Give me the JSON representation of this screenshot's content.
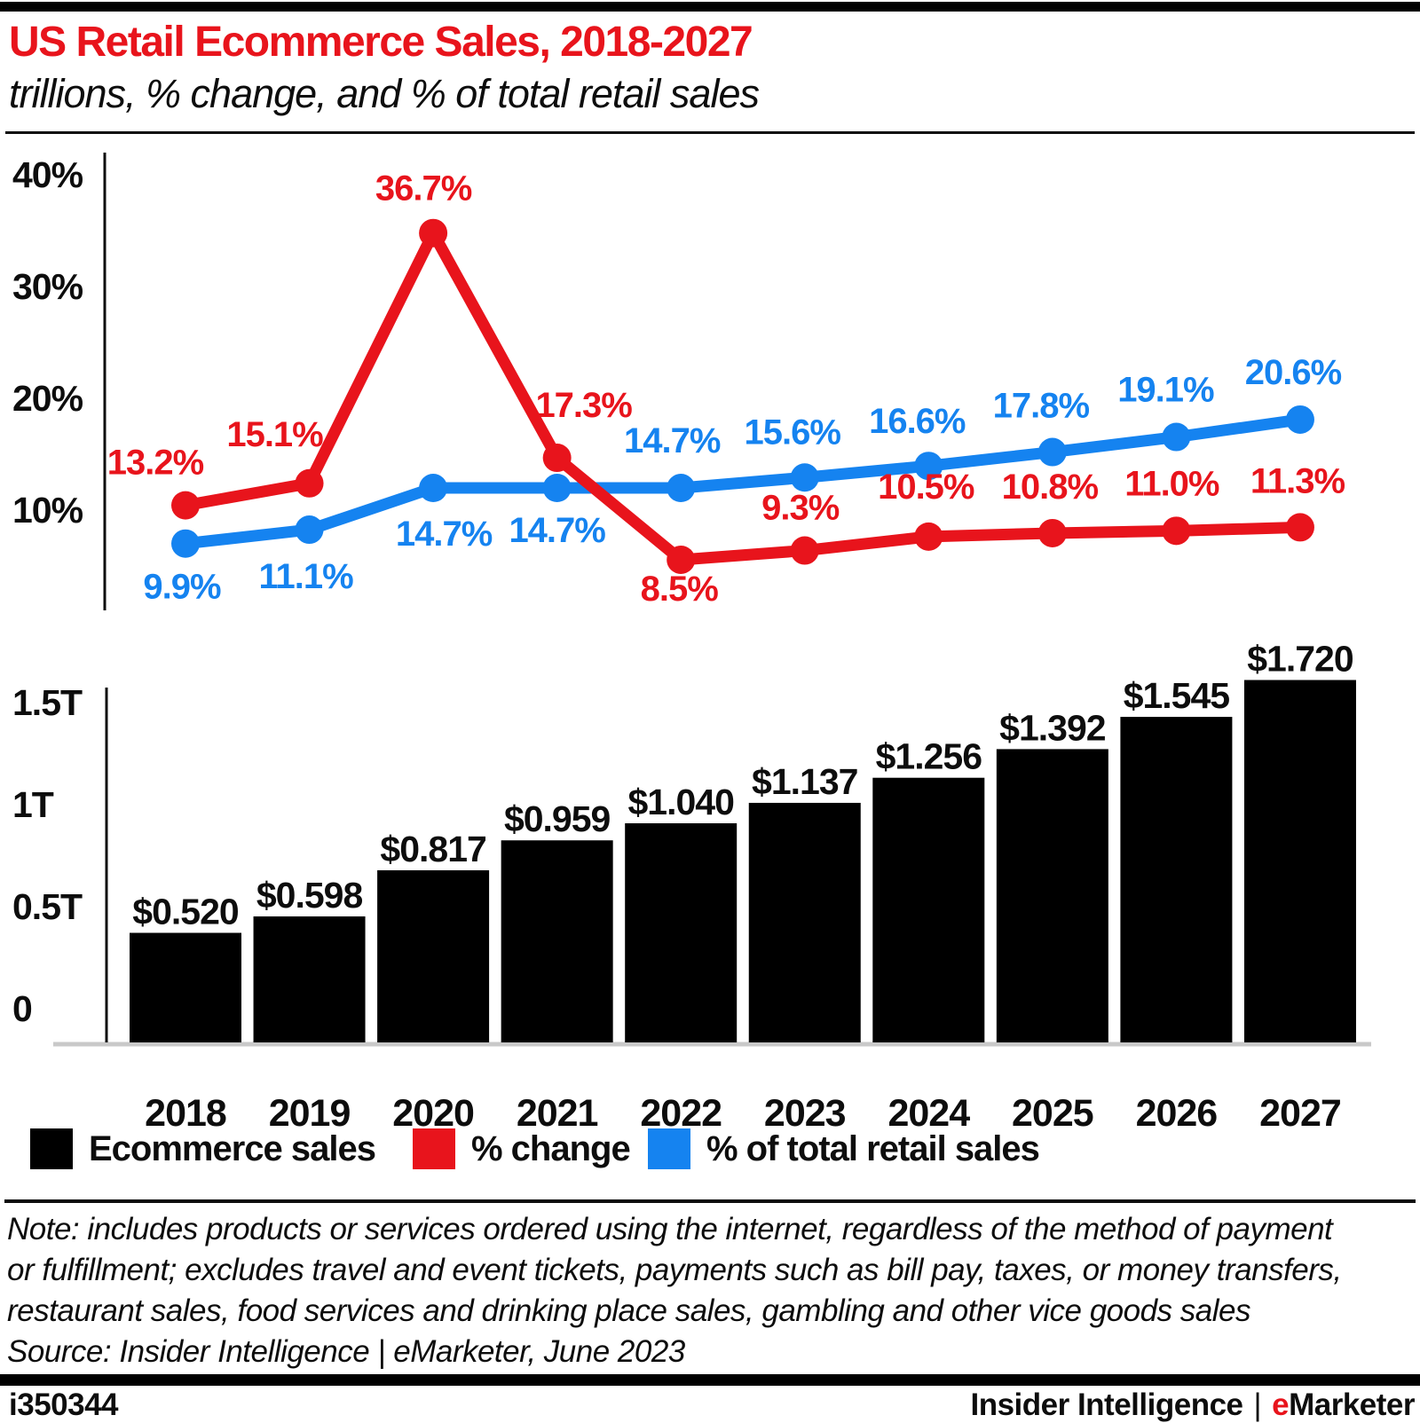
{
  "header": {
    "title": "US Retail Ecommerce Sales, 2018-2027",
    "subtitle": "trillions, % change, and % of total retail sales"
  },
  "colors": {
    "red": "#e8141c",
    "blue": "#1583f0",
    "black": "#000000",
    "text": "#0d0d0d",
    "baseline_gray": "#c9c9c9"
  },
  "chart_data": [
    {
      "type": "line",
      "categories": [
        "2018",
        "2019",
        "2020",
        "2021",
        "2022",
        "2023",
        "2024",
        "2025",
        "2026",
        "2027"
      ],
      "yticks": {
        "labels": [
          "40%",
          "30%",
          "20%",
          "10%"
        ],
        "values": [
          40,
          30,
          20,
          10
        ]
      },
      "ylim": [
        0,
        42
      ],
      "grid": false,
      "legend_position": "bottom",
      "series": [
        {
          "name": "% change",
          "color": "#e8141c",
          "values": [
            13.2,
            15.1,
            36.7,
            17.3,
            8.5,
            9.3,
            10.5,
            10.8,
            11.0,
            11.3
          ],
          "labels": [
            "13.2%",
            "15.1%",
            "36.7%",
            "17.3%",
            "8.5%",
            "9.3%",
            "10.5%",
            "10.8%",
            "11.0%",
            "11.3%"
          ],
          "label_offsets": [
            [
              -34,
              -48
            ],
            [
              -39,
              -55
            ],
            [
              -11,
              -50
            ],
            [
              30,
              -59
            ],
            [
              -2,
              33
            ],
            [
              -5,
              -48
            ],
            [
              -3,
              -56
            ],
            [
              -3,
              -52
            ],
            [
              -5,
              -53
            ],
            [
              -3,
              -52
            ]
          ]
        },
        {
          "name": "% of total retail sales",
          "color": "#1583f0",
          "values": [
            9.9,
            11.1,
            14.7,
            14.7,
            14.7,
            15.6,
            16.6,
            17.8,
            19.1,
            20.6
          ],
          "labels": [
            "9.9%",
            "11.1%",
            "14.7%",
            "14.7%",
            "14.7%",
            "15.6%",
            "16.6%",
            "17.8%",
            "19.1%",
            "20.6%"
          ],
          "label_offsets": [
            [
              -4,
              49
            ],
            [
              -4,
              53
            ],
            [
              12,
              52
            ],
            [
              0,
              48
            ],
            [
              -10,
              -53
            ],
            [
              -14,
              -51
            ],
            [
              -13,
              -50
            ],
            [
              -13,
              -52
            ],
            [
              -12,
              -53
            ],
            [
              -8,
              -53
            ]
          ]
        }
      ]
    },
    {
      "type": "bar",
      "categories": [
        "2018",
        "2019",
        "2020",
        "2021",
        "2022",
        "2023",
        "2024",
        "2025",
        "2026",
        "2027"
      ],
      "values": [
        0.52,
        0.598,
        0.817,
        0.959,
        1.04,
        1.137,
        1.256,
        1.392,
        1.545,
        1.72
      ],
      "bar_labels": [
        "$0.520",
        "$0.598",
        "$0.817",
        "$0.959",
        "$1.040",
        "$1.137",
        "$1.256",
        "$1.392",
        "$1.545",
        "$1.720"
      ],
      "yticks": {
        "labels": [
          "1.5T",
          "1T",
          "0.5T",
          "0"
        ],
        "values": [
          1.5,
          1.0,
          0.5,
          0
        ]
      },
      "ylim": [
        0,
        1.75
      ],
      "grid": false,
      "color": "#000000"
    }
  ],
  "legend": {
    "items": [
      {
        "label": "Ecommerce sales",
        "color": "#000000"
      },
      {
        "label": "% change",
        "color": "#e8141c"
      },
      {
        "label": "% of total retail sales",
        "color": "#1583f0"
      }
    ]
  },
  "note": {
    "lines": [
      "Note: includes products or services ordered using the internet, regardless of the method of payment",
      "or fulfillment; excludes travel and event tickets, payments such as bill pay, taxes, or money transfers,",
      "restaurant sales, food services and drinking place sales, gambling and other vice goods sales"
    ],
    "source": "Source: Insider Intelligence | eMarketer, June 2023"
  },
  "footer": {
    "chart_id": "i350344",
    "brand_primary": "Insider Intelligence",
    "brand_separator": "|",
    "brand_e": "e",
    "brand_rest": "Marketer"
  }
}
